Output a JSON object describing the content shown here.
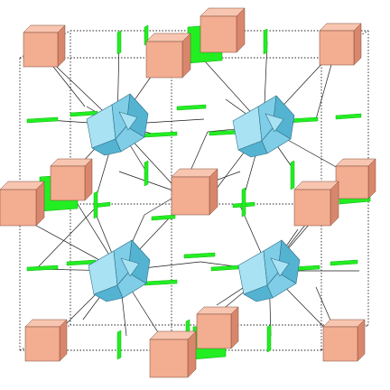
{
  "scene": {
    "colors": {
      "background": "#ffffff",
      "cube_front": "#f3ad90",
      "cube_top": "#f8c6b0",
      "cube_side": "#d9876c",
      "cube_edge": "#7a4a3a",
      "green_plate": "#22ee22",
      "green_plate_dark": "#12b612",
      "cluster_light": "#a9e2f3",
      "cluster_mid": "#7fcde6",
      "cluster_dark": "#55b3d2",
      "cluster_edge": "#2d6f86",
      "bond_line": "#1a1a1a",
      "cell_line": "#222222"
    },
    "icons": {
      "cube": "cube-icon",
      "plate": "square-plate-icon",
      "cluster": "octahedron-icon"
    }
  }
}
